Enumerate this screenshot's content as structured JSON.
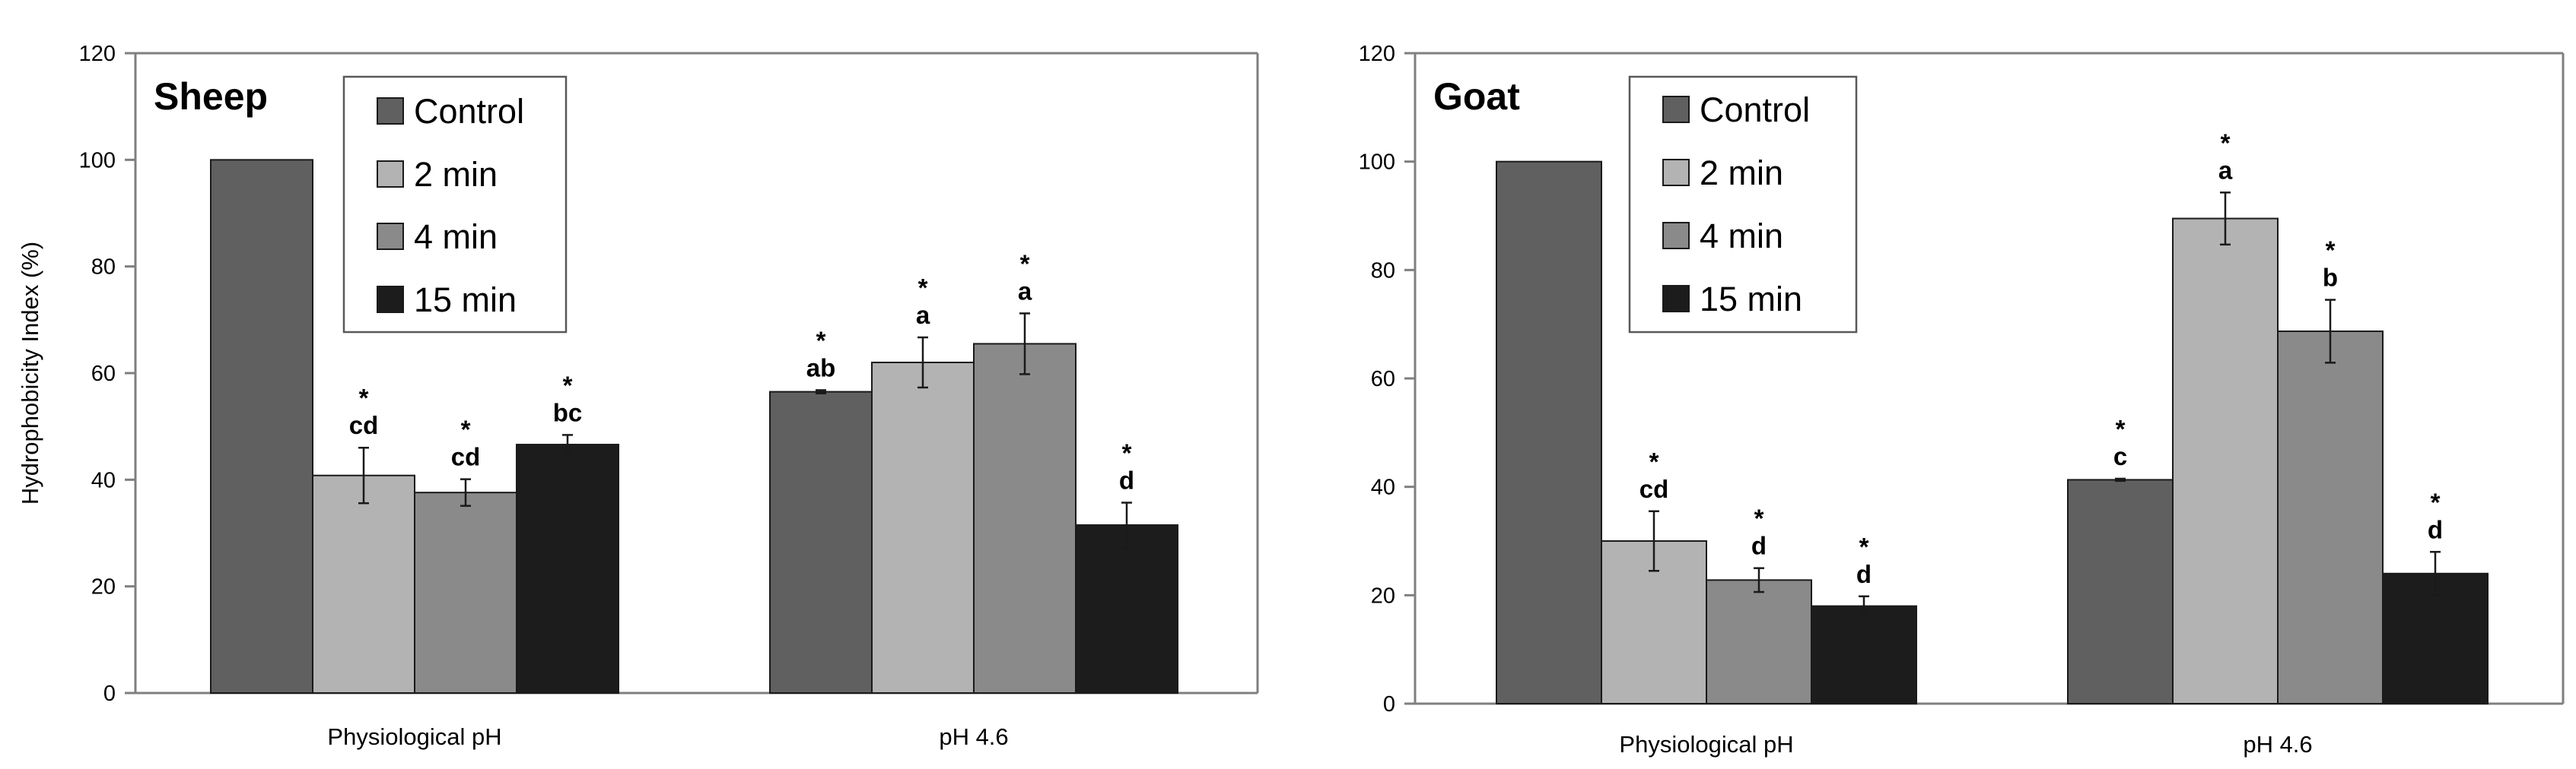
{
  "colors": {
    "Control": "#606060",
    "2 min": "#b3b3b3",
    "4 min": "#8a8a8a",
    "15 min": "#1c1c1c"
  },
  "chart_data": [
    {
      "type": "bar",
      "title": "Sheep",
      "ylabel": "Hydrophobicity Index (%)",
      "xlabel": "",
      "ylim": [
        0,
        120
      ],
      "yticks": [
        0,
        20,
        40,
        60,
        80,
        100,
        120
      ],
      "categories": [
        "Physiological pH",
        "pH 4.6"
      ],
      "legend": [
        "Control",
        "2 min",
        "4 min",
        "15 min"
      ],
      "legend_position": "top-center",
      "series": [
        {
          "name": "Control",
          "values": [
            100,
            56.5
          ],
          "errors": [
            0,
            0.3
          ],
          "labels": [
            [
              "",
              ""
            ],
            [
              "*",
              "ab"
            ]
          ]
        },
        {
          "name": "2 min",
          "values": [
            40.8,
            62
          ],
          "errors": [
            5.2,
            4.7
          ],
          "labels": [
            [
              "*",
              "cd"
            ],
            [
              "*",
              "a"
            ]
          ]
        },
        {
          "name": "4 min",
          "values": [
            37.6,
            65.5
          ],
          "errors": [
            2.5,
            5.7
          ],
          "labels": [
            [
              "*",
              "cd"
            ],
            [
              "*",
              "a"
            ]
          ]
        },
        {
          "name": "15 min",
          "values": [
            46.6,
            31.5
          ],
          "errors": [
            1.8,
            4.2
          ],
          "labels": [
            [
              "*",
              "bc"
            ],
            [
              "*",
              "d"
            ]
          ]
        }
      ]
    },
    {
      "type": "bar",
      "title": "Goat",
      "ylabel": "",
      "xlabel": "",
      "ylim": [
        0,
        120
      ],
      "yticks": [
        0,
        20,
        40,
        60,
        80,
        100,
        120
      ],
      "categories": [
        "Physiological pH",
        "pH 4.6"
      ],
      "legend": [
        "Control",
        "2 min",
        "4 min",
        "15 min"
      ],
      "legend_position": "top-center",
      "series": [
        {
          "name": "Control",
          "values": [
            100,
            41.3
          ],
          "errors": [
            0,
            0.2
          ],
          "labels": [
            [
              "",
              ""
            ],
            [
              "*",
              "c"
            ]
          ]
        },
        {
          "name": "2 min",
          "values": [
            30,
            89.5
          ],
          "errors": [
            5.5,
            4.8
          ],
          "labels": [
            [
              "*",
              "cd"
            ],
            [
              "*",
              "a"
            ]
          ]
        },
        {
          "name": "4 min",
          "values": [
            22.8,
            68.7
          ],
          "errors": [
            2.2,
            5.8
          ],
          "labels": [
            [
              "*",
              "d"
            ],
            [
              "*",
              "b"
            ]
          ]
        },
        {
          "name": "15 min",
          "values": [
            18,
            24
          ],
          "errors": [
            1.8,
            4
          ],
          "labels": [
            [
              "*",
              "d"
            ],
            [
              "*",
              "d"
            ]
          ]
        }
      ]
    }
  ]
}
